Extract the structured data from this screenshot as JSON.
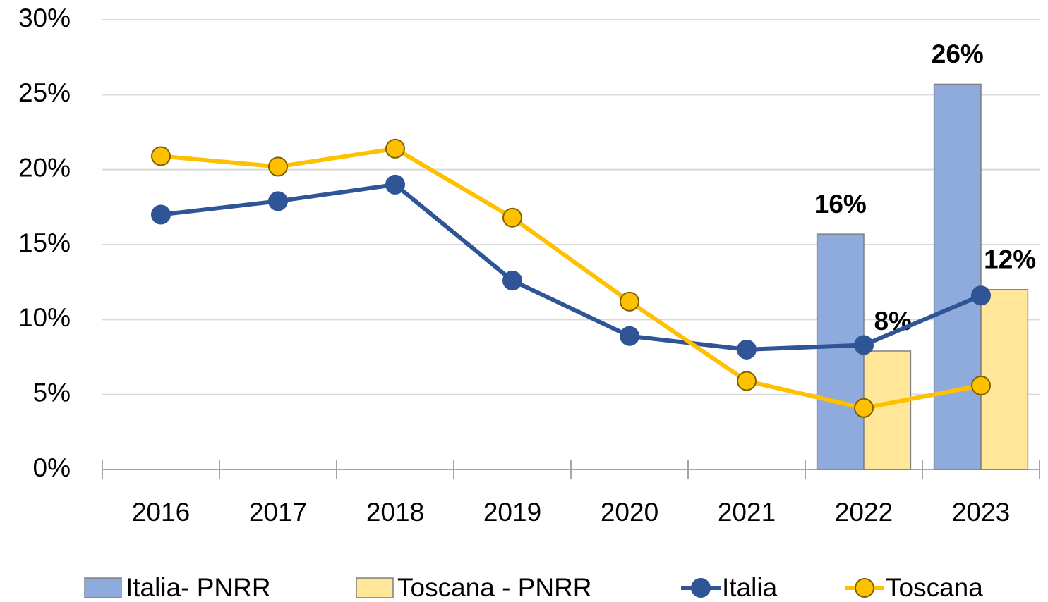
{
  "chart_data": {
    "type": "combo",
    "categories": [
      "2016",
      "2017",
      "2018",
      "2019",
      "2020",
      "2021",
      "2022",
      "2023"
    ],
    "series": [
      {
        "name": "Italia- PNRR",
        "type": "bar",
        "color": "#8faadc",
        "values": [
          null,
          null,
          null,
          null,
          null,
          null,
          15.7,
          25.7
        ],
        "value_labels": [
          null,
          null,
          null,
          null,
          null,
          null,
          "16%",
          "26%"
        ]
      },
      {
        "name": "Toscana - PNRR",
        "type": "bar",
        "color": "#ffe699",
        "values": [
          null,
          null,
          null,
          null,
          null,
          null,
          7.9,
          12.0
        ],
        "value_labels": [
          null,
          null,
          null,
          null,
          null,
          null,
          "8%",
          "12%"
        ]
      },
      {
        "name": "Italia",
        "type": "line",
        "color": "#2f5597",
        "values": [
          17.0,
          17.9,
          19.0,
          12.6,
          8.9,
          8.0,
          8.3,
          11.6
        ]
      },
      {
        "name": "Toscana",
        "type": "line",
        "color": "#ffc000",
        "values": [
          20.9,
          20.2,
          21.4,
          16.8,
          11.2,
          5.9,
          4.1,
          5.6
        ]
      }
    ],
    "ylim": [
      0,
      30
    ],
    "yticks": [
      {
        "value": 0,
        "label": "0%"
      },
      {
        "value": 5,
        "label": "5%"
      },
      {
        "value": 10,
        "label": "10%"
      },
      {
        "value": 15,
        "label": "15%"
      },
      {
        "value": 20,
        "label": "20%"
      },
      {
        "value": 25,
        "label": "25%"
      },
      {
        "value": 30,
        "label": "30%"
      }
    ],
    "grid": true,
    "legend": "bottom"
  }
}
